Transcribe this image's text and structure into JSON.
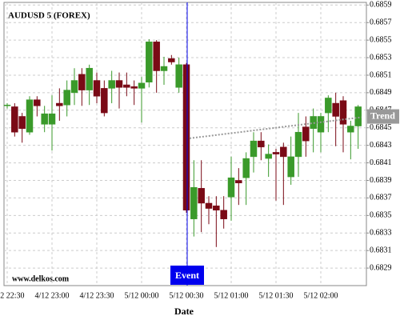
{
  "chart_data": {
    "type": "candlestick",
    "title": "AUDUSD 5 (FOREX)",
    "xlabel": "Date",
    "watermark": "www.delkos.com",
    "categories": [
      "4/12 22:30",
      null,
      null,
      null,
      null,
      null,
      "4/12 23:00",
      null,
      null,
      null,
      null,
      null,
      "4/12 23:30",
      null,
      null,
      null,
      null,
      null,
      "5/12 00:00",
      null,
      null,
      null,
      null,
      null,
      "5/12 00:30",
      null,
      null,
      null,
      null,
      null,
      "5/12 01:00",
      null,
      null,
      null,
      null,
      null,
      "5/12 01:30",
      null,
      null,
      null,
      null,
      null,
      "5/12 02:00",
      null,
      null,
      null,
      null,
      null
    ],
    "open": [
      0.68476,
      0.68474,
      0.68463,
      0.68445,
      0.68482,
      0.68454,
      0.68454,
      0.68478,
      0.68476,
      0.6849,
      0.68511,
      0.68493,
      0.68504,
      0.68495,
      0.68495,
      0.68504,
      0.68499,
      0.68497,
      0.68495,
      0.68502,
      0.68548,
      0.68515,
      0.68529,
      0.68496,
      0.68522,
      0.68346,
      0.68381,
      0.68364,
      0.68361,
      0.68356,
      0.68371,
      0.6839,
      0.68393,
      0.68417,
      0.68435,
      0.68415,
      0.68422,
      0.68428,
      0.68394,
      0.68417,
      0.68451,
      0.68449,
      0.68445,
      0.68467,
      0.68478,
      0.68481,
      0.68445,
      0.68452
    ],
    "high": [
      0.68478,
      0.68478,
      0.68467,
      0.68486,
      0.68486,
      0.68475,
      0.68487,
      0.68495,
      0.68504,
      0.68518,
      0.68518,
      0.68522,
      0.68513,
      0.68504,
      0.68515,
      0.68513,
      0.68513,
      0.68504,
      0.68508,
      0.68551,
      0.6855,
      0.68531,
      0.68533,
      0.6853,
      0.68524,
      0.68413,
      0.68413,
      0.68372,
      0.68372,
      0.68372,
      0.68417,
      0.68404,
      0.68422,
      0.68445,
      0.68445,
      0.68431,
      0.68426,
      0.68433,
      0.6844,
      0.68467,
      0.68463,
      0.68472,
      0.68467,
      0.68487,
      0.6849,
      0.68486,
      0.68458,
      0.68476
    ],
    "low": [
      0.68472,
      0.6844,
      0.68433,
      0.68442,
      0.68463,
      0.68445,
      0.68424,
      0.68458,
      0.68463,
      0.68476,
      0.68475,
      0.68476,
      0.68478,
      0.68463,
      0.68478,
      0.68472,
      0.68486,
      0.68476,
      0.68456,
      0.68496,
      0.6849,
      0.68499,
      0.68522,
      0.6849,
      0.68353,
      0.68326,
      0.68331,
      0.6834,
      0.68314,
      0.68335,
      0.68344,
      0.68362,
      0.68362,
      0.68399,
      0.68413,
      0.68394,
      0.68367,
      0.68362,
      0.68385,
      0.68394,
      0.68417,
      0.68422,
      0.68422,
      0.68445,
      0.68429,
      0.68422,
      0.68414,
      0.68426
    ],
    "close": [
      0.68476,
      0.68445,
      0.68449,
      0.68482,
      0.68475,
      0.68466,
      0.68466,
      0.68475,
      0.68493,
      0.68504,
      0.68493,
      0.68518,
      0.68486,
      0.68467,
      0.68504,
      0.68496,
      0.68496,
      0.68495,
      0.68501,
      0.68548,
      0.68515,
      0.6852,
      0.68525,
      0.68522,
      0.68356,
      0.68382,
      0.68364,
      0.68358,
      0.68356,
      0.68346,
      0.68393,
      0.68387,
      0.68415,
      0.68435,
      0.68428,
      0.6842,
      0.6842,
      0.68417,
      0.68417,
      0.68445,
      0.68435,
      0.68463,
      0.68463,
      0.68484,
      0.68463,
      0.68454,
      0.68452,
      0.68474
    ],
    "up_color": "#3a9a2a",
    "down_color": "#7a0a16",
    "ylim": [
      0.6827,
      0.68593
    ],
    "yticks": [
      0.6829,
      0.6831,
      0.6833,
      0.6835,
      0.6837,
      0.6839,
      0.6841,
      0.6843,
      0.6845,
      0.6847,
      0.6849,
      0.6851,
      0.6853,
      0.6855,
      0.6857,
      0.6859
    ],
    "grid": true,
    "trend": {
      "label": "Trend",
      "x": [
        24,
        47
      ],
      "values": [
        0.68438,
        0.68462
      ],
      "color": "#999999"
    },
    "event": {
      "label": "Event",
      "x": 24,
      "color": "#0000ee"
    }
  }
}
